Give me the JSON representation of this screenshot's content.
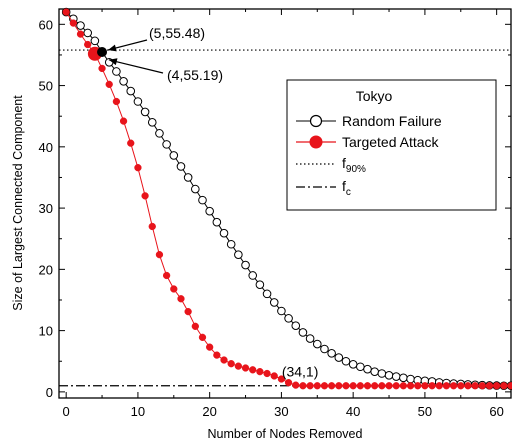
{
  "chart_data": {
    "type": "line",
    "xlabel": "Number of Nodes Removed",
    "ylabel": "Size of Largest Connected Component",
    "xlim": [
      -1,
      62
    ],
    "ylim": [
      -1,
      62.5
    ],
    "xticks": [
      0,
      10,
      20,
      30,
      40,
      50,
      60
    ],
    "yticks": [
      0,
      10,
      20,
      30,
      40,
      50,
      60
    ],
    "grid": false,
    "legend": {
      "title": "Tokyo",
      "placement": "right-middle",
      "entries": [
        {
          "label": "Random Failure",
          "marker": "open-circle",
          "color": "#000000"
        },
        {
          "label": "Targeted Attack",
          "marker": "filled-circle",
          "color": "#e8141b"
        },
        {
          "label": "f",
          "sub": "90%",
          "line": "dotted"
        },
        {
          "label": "f",
          "sub": "c",
          "line": "dash-dot"
        }
      ]
    },
    "reference_lines": [
      {
        "name": "f90%",
        "y": 55.8,
        "style": "dotted"
      },
      {
        "name": "fc",
        "y": 1,
        "style": "dash-dot"
      }
    ],
    "annotations": [
      {
        "text": "(5,55.48)",
        "x": 5,
        "y": 55.48
      },
      {
        "text": "(4,55.19)",
        "x": 4,
        "y": 55.19
      },
      {
        "text": "(34,1)",
        "x": 34,
        "y": 1
      }
    ],
    "series": [
      {
        "name": "Random Failure",
        "color": "#000000",
        "marker": "open-circle",
        "x": [
          0,
          1,
          2,
          3,
          4,
          5,
          6,
          7,
          8,
          9,
          10,
          11,
          12,
          13,
          14,
          15,
          16,
          17,
          18,
          19,
          20,
          21,
          22,
          23,
          24,
          25,
          26,
          27,
          28,
          29,
          30,
          31,
          32,
          33,
          34,
          35,
          36,
          37,
          38,
          39,
          40,
          41,
          42,
          43,
          44,
          45,
          46,
          47,
          48,
          49,
          50,
          51,
          52,
          53,
          54,
          55,
          56,
          57,
          58,
          59,
          60,
          61,
          62
        ],
        "values": [
          62,
          60.9,
          59.8,
          58.6,
          57.3,
          55.48,
          53.8,
          52.3,
          50.7,
          49.1,
          47.4,
          45.7,
          44.0,
          42.2,
          40.4,
          38.6,
          36.8,
          35.0,
          33.1,
          31.3,
          29.5,
          27.7,
          25.9,
          24.1,
          22.4,
          20.7,
          19.0,
          17.5,
          16.0,
          14.6,
          13.2,
          12.0,
          10.8,
          9.7,
          8.7,
          7.8,
          7.0,
          6.3,
          5.6,
          5.0,
          4.5,
          4.1,
          3.7,
          3.3,
          3.0,
          2.7,
          2.5,
          2.3,
          2.1,
          1.9,
          1.8,
          1.7,
          1.55,
          1.45,
          1.35,
          1.3,
          1.22,
          1.15,
          1.1,
          1.06,
          1.03,
          1.0,
          1.0
        ]
      },
      {
        "name": "Targeted Attack",
        "color": "#e8141b",
        "marker": "filled-circle",
        "x": [
          0,
          1,
          2,
          3,
          4,
          5,
          6,
          7,
          8,
          9,
          10,
          11,
          12,
          13,
          14,
          15,
          16,
          17,
          18,
          19,
          20,
          21,
          22,
          23,
          24,
          25,
          26,
          27,
          28,
          29,
          30,
          31,
          32,
          33,
          34,
          35,
          36,
          37,
          38,
          39,
          40,
          41,
          42,
          43,
          44,
          45,
          46,
          47,
          48,
          49,
          50,
          51,
          52,
          53,
          54,
          55,
          56,
          57,
          58,
          59,
          60,
          61,
          62
        ],
        "values": [
          62,
          60.2,
          58.4,
          56.7,
          55.19,
          52.8,
          50.2,
          47.4,
          44.2,
          40.6,
          36.6,
          32.0,
          27.0,
          22.4,
          19.0,
          16.8,
          15.2,
          13.1,
          10.7,
          8.9,
          7.3,
          6.0,
          5.2,
          4.6,
          4.2,
          3.9,
          3.6,
          3.3,
          3.0,
          2.6,
          2.1,
          1.5,
          1.1,
          1.0,
          1.0,
          1.0,
          1.0,
          1.0,
          1.0,
          1.0,
          1.0,
          1.0,
          1.0,
          1.0,
          1.0,
          1.0,
          1.0,
          1.0,
          1.0,
          1.0,
          1.0,
          1.0,
          1.0,
          1.0,
          1.0,
          1.0,
          1.0,
          1.0,
          1.0,
          1.0,
          1.0,
          1.0,
          1.0
        ]
      }
    ]
  }
}
